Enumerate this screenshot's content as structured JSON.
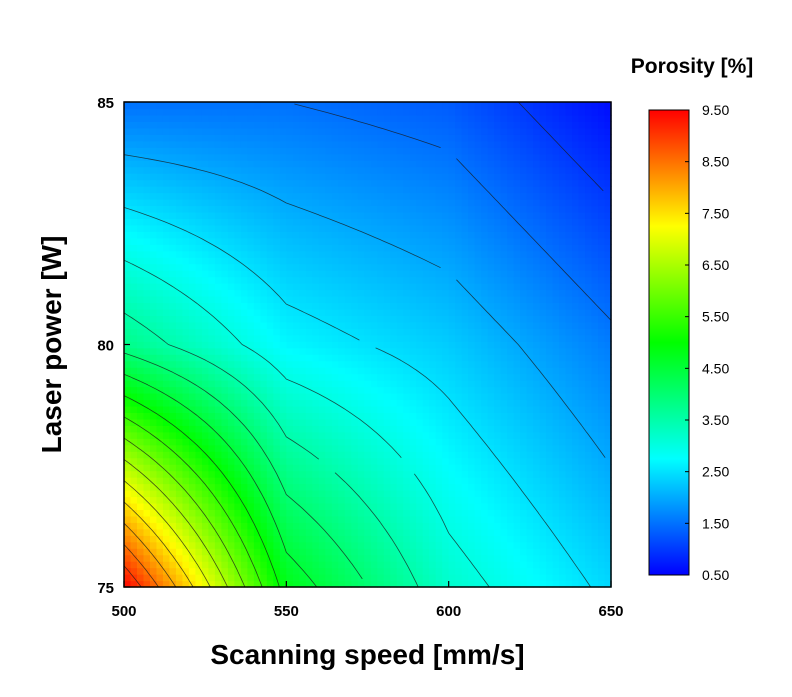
{
  "chart_data": {
    "type": "heatmap",
    "xlabel": "Scanning speed [mm/s]",
    "ylabel": "Laser power [W]",
    "xlim": [
      500,
      650
    ],
    "ylim": [
      75,
      85
    ],
    "x_ticks": [
      "500",
      "550",
      "600",
      "650"
    ],
    "y_ticks": [
      "75",
      "80",
      "85"
    ],
    "x": [
      500,
      550,
      600,
      650
    ],
    "y": [
      75,
      80,
      85
    ],
    "z": [
      [
        9.5,
        4.8,
        3.2,
        2.4
      ],
      [
        3.8,
        2.7,
        2.3,
        1.6
      ],
      [
        1.5,
        1.5,
        1.3,
        0.6
      ]
    ],
    "colorbar": {
      "title": "Porosity [%]",
      "range": [
        0.5,
        9.5
      ],
      "tick_values": [
        0.5,
        1.5,
        2.5,
        3.5,
        4.5,
        5.5,
        6.5,
        7.5,
        8.5,
        9.5
      ],
      "tick_labels": [
        "0.50",
        "1.50",
        "2.50",
        "3.50",
        "4.50",
        "5.50",
        "6.50",
        "7.50",
        "8.50",
        "9.50"
      ],
      "colormap": [
        "#0000ff",
        "#00ffff",
        "#00ff00",
        "#ffff00",
        "#ff0000"
      ]
    },
    "contour_levels": [
      1.0,
      1.5,
      2.0,
      2.5,
      3.0,
      3.5,
      4.0,
      4.5,
      5.0,
      5.5,
      6.0,
      6.5,
      7.0,
      7.5,
      8.0,
      8.5,
      9.0
    ]
  }
}
